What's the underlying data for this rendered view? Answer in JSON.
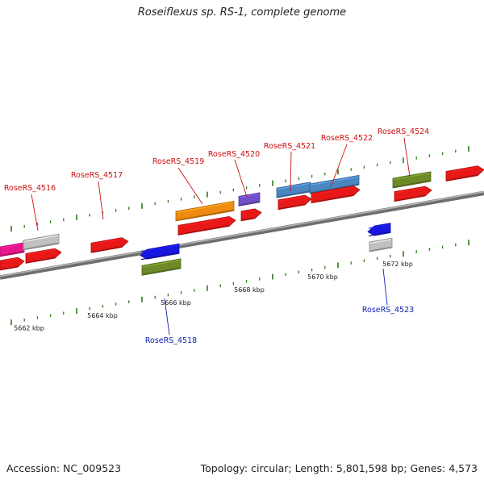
{
  "title": "Roseiflexus sp. RS-1, complete genome",
  "footer": {
    "accession": "Accession: NC_009523",
    "summary": "Topology: circular; Length: 5,801,598 bp; Genes: 4,573"
  },
  "colors": {
    "backbone": "#8a8a8a",
    "tick": "#2f7a1a",
    "label_forward": "#cc1010",
    "label_reverse": "#1020b0",
    "cds": "#e81818",
    "gray": "#c0c0c0",
    "pink": "#e8168c",
    "olive": "#6e8a28",
    "orange": "#f08a10",
    "purple": "#7050c8",
    "steel": "#4a86c0",
    "blue": "#1818e0"
  },
  "scale_labels": [
    {
      "text": "5662 kbp",
      "pos_kbp": 5662
    },
    {
      "text": "5664 kbp",
      "pos_kbp": 5664
    },
    {
      "text": "5666 kbp",
      "pos_kbp": 5666
    },
    {
      "text": "5668 kbp",
      "pos_kbp": 5668
    },
    {
      "text": "5670 kbp",
      "pos_kbp": 5670
    },
    {
      "text": "5672 kbp",
      "pos_kbp": 5672
    }
  ],
  "gene_labels": [
    {
      "id": "RoseRS_4516",
      "text": "RoseRS_4516",
      "strand": "forward"
    },
    {
      "id": "RoseRS_4517",
      "text": "RoseRS_4517",
      "strand": "forward"
    },
    {
      "id": "RoseRS_4519",
      "text": "RoseRS_4519",
      "strand": "forward"
    },
    {
      "id": "RoseRS_4520",
      "text": "RoseRS_4520",
      "strand": "forward"
    },
    {
      "id": "RoseRS_4521",
      "text": "RoseRS_4521",
      "strand": "forward"
    },
    {
      "id": "RoseRS_4522",
      "text": "RoseRS_4522",
      "strand": "forward"
    },
    {
      "id": "RoseRS_4524",
      "text": "RoseRS_4524",
      "strand": "forward"
    },
    {
      "id": "RoseRS_4518",
      "text": "RoseRS_4518",
      "strand": "reverse"
    },
    {
      "id": "RoseRS_4523",
      "text": "RoseRS_4523",
      "strand": "reverse"
    }
  ]
}
